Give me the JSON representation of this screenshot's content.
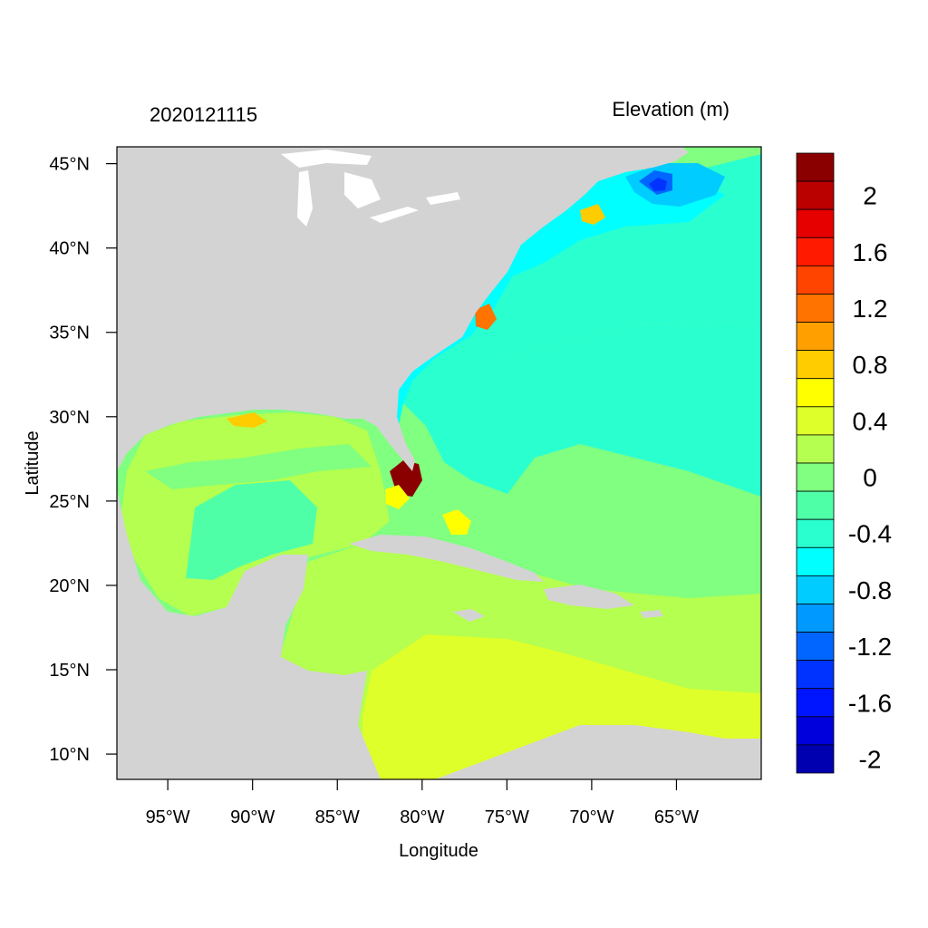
{
  "header": {
    "timestamp": "2020121115",
    "variable": "Elevation (m)"
  },
  "axes": {
    "xlabel": "Longitude",
    "ylabel": "Latitude",
    "lon_range": [
      -98,
      -60
    ],
    "lat_range": [
      8.5,
      46
    ],
    "x_ticks": [
      {
        "value": -95,
        "label": "95°W"
      },
      {
        "value": -90,
        "label": "90°W"
      },
      {
        "value": -85,
        "label": "85°W"
      },
      {
        "value": -80,
        "label": "80°W"
      },
      {
        "value": -75,
        "label": "75°W"
      },
      {
        "value": -70,
        "label": "70°W"
      },
      {
        "value": -65,
        "label": "65°W"
      }
    ],
    "y_ticks": [
      {
        "value": 45,
        "label": "45°N"
      },
      {
        "value": 40,
        "label": "40°N"
      },
      {
        "value": 35,
        "label": "35°N"
      },
      {
        "value": 30,
        "label": "30°N"
      },
      {
        "value": 25,
        "label": "25°N"
      },
      {
        "value": 20,
        "label": "20°N"
      },
      {
        "value": 15,
        "label": "15°N"
      },
      {
        "value": 10,
        "label": "10°N"
      }
    ]
  },
  "colorbar": {
    "colors_top_to_bottom": [
      "#8a0000",
      "#bb0000",
      "#e60000",
      "#ff1a00",
      "#ff4400",
      "#ff7300",
      "#ffa000",
      "#ffcc00",
      "#ffff00",
      "#dfff2a",
      "#b4ff4f",
      "#80ff80",
      "#4fffa8",
      "#2affd0",
      "#00ffff",
      "#00ccff",
      "#0099ff",
      "#0066ff",
      "#0033ff",
      "#0015ff",
      "#0000dd",
      "#0000b0"
    ],
    "labels": [
      {
        "value": 2,
        "label": "2"
      },
      {
        "value": 1.6,
        "label": "1.6"
      },
      {
        "value": 1.2,
        "label": "1.2"
      },
      {
        "value": 0.8,
        "label": "0.8"
      },
      {
        "value": 0.4,
        "label": "0.4"
      },
      {
        "value": 0,
        "label": "0"
      },
      {
        "value": -0.4,
        "label": "-0.4"
      },
      {
        "value": -0.8,
        "label": "-0.8"
      },
      {
        "value": -1.2,
        "label": "-1.2"
      },
      {
        "value": -1.6,
        "label": "-1.6"
      },
      {
        "value": -2,
        "label": "-2"
      }
    ]
  },
  "colors": {
    "land": "#d3d3d3",
    "lakes": "#ffffff",
    "zero_band": "#80ff80",
    "neg02": "#4fffa8",
    "neg04": "#2affd0",
    "neg06": "#00ffff",
    "neg08": "#00ccff",
    "neg12": "#0066ff",
    "neg16": "#0033ff",
    "pos02": "#b4ff4f",
    "pos04": "#dfff2a",
    "pos06": "#ffff00",
    "pos08": "#ffcc00",
    "pos12": "#ff7300",
    "pos20": "#8a0000"
  }
}
